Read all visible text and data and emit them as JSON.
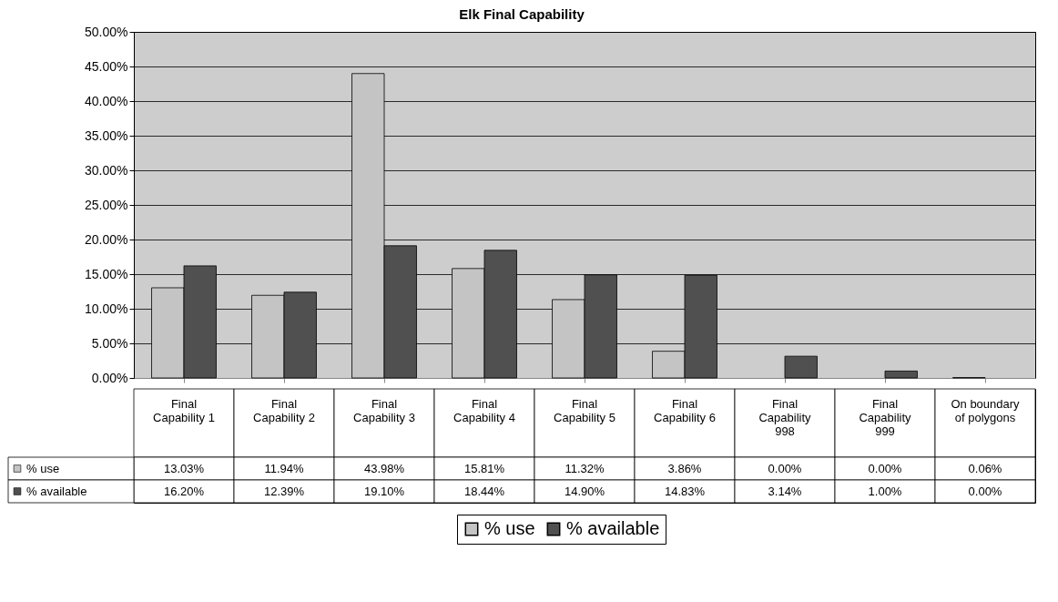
{
  "chart_data": {
    "type": "bar",
    "title": "Elk Final Capability",
    "categories": [
      "Final Capability 1",
      "Final Capability 2",
      "Final Capability 3",
      "Final Capability 4",
      "Final Capability 5",
      "Final Capability 6",
      "Final Capability 998",
      "Final Capability 999",
      "On boundary of polygons"
    ],
    "series": [
      {
        "name": "% use",
        "color": "#c4c4c4",
        "values": [
          13.03,
          11.94,
          43.98,
          15.81,
          11.32,
          3.86,
          0.0,
          0.0,
          0.06
        ],
        "value_labels": [
          "13.03%",
          "11.94%",
          "43.98%",
          "15.81%",
          "11.32%",
          "3.86%",
          "0.00%",
          "0.00%",
          "0.06%"
        ]
      },
      {
        "name": "% available",
        "color": "#505050",
        "values": [
          16.2,
          12.39,
          19.1,
          18.44,
          14.9,
          14.83,
          3.14,
          1.0,
          0.0
        ],
        "value_labels": [
          "16.20%",
          "12.39%",
          "19.10%",
          "18.44%",
          "14.90%",
          "14.83%",
          "3.14%",
          "1.00%",
          "0.00%"
        ]
      }
    ],
    "ylim": [
      0,
      50
    ],
    "yticks": [
      {
        "value": 0,
        "label": "0.00%"
      },
      {
        "value": 5,
        "label": "5.00%"
      },
      {
        "value": 10,
        "label": "10.00%"
      },
      {
        "value": 15,
        "label": "15.00%"
      },
      {
        "value": 20,
        "label": "20.00%"
      },
      {
        "value": 25,
        "label": "25.00%"
      },
      {
        "value": 30,
        "label": "30.00%"
      },
      {
        "value": 35,
        "label": "35.00%"
      },
      {
        "value": 40,
        "label": "40.00%"
      },
      {
        "value": 45,
        "label": "45.00%"
      },
      {
        "value": 50,
        "label": "50.00%"
      }
    ],
    "grid": "y",
    "legend": "bottom"
  }
}
